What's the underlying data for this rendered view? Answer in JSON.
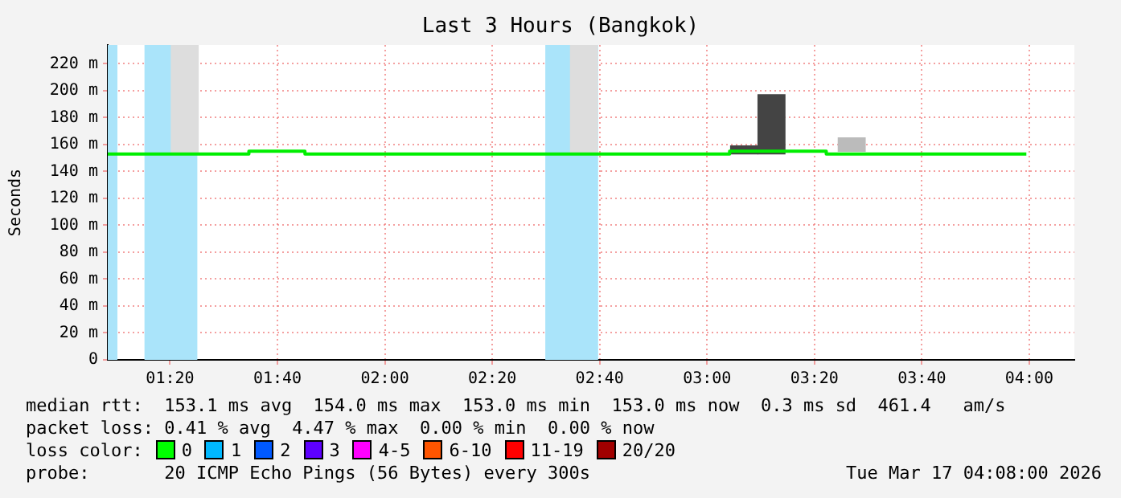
{
  "chart_data": {
    "type": "step",
    "title": "Last 3 Hours (Bangkok)",
    "ylabel": "Seconds",
    "xlim": [
      1.14,
      4.14
    ],
    "xticks": [
      {
        "value": 1.3333,
        "label": "01:20"
      },
      {
        "value": 1.6667,
        "label": "01:40"
      },
      {
        "value": 2,
        "label": "02:00"
      },
      {
        "value": 2.3333,
        "label": "02:20"
      },
      {
        "value": 2.6667,
        "label": "02:40"
      },
      {
        "value": 3,
        "label": "03:00"
      },
      {
        "value": 3.3333,
        "label": "03:20"
      },
      {
        "value": 3.6667,
        "label": "03:40"
      },
      {
        "value": 4,
        "label": "04:00"
      }
    ],
    "ylim": [
      0,
      234
    ],
    "yticks": [
      0,
      {
        "value": 20,
        "label": "20 m"
      },
      {
        "value": 40,
        "label": "40 m"
      },
      {
        "value": 60,
        "label": "60 m"
      },
      {
        "value": 80,
        "label": "80 m"
      },
      {
        "value": 100,
        "label": "100 m"
      },
      {
        "value": 120,
        "label": "120 m"
      },
      {
        "value": 140,
        "label": "140 m"
      },
      {
        "value": 160,
        "label": "160 m"
      },
      {
        "value": 180,
        "label": "180 m"
      },
      {
        "value": 200,
        "label": "200 m"
      },
      {
        "value": 220,
        "label": "220 m"
      }
    ],
    "grid": true,
    "legend": false,
    "series": [
      {
        "type": "bar",
        "x": [
          1.379,
          2.618,
          3.115,
          3.2,
          3.449
        ],
        "base": [
          153,
          153,
          153,
          153,
          155
        ],
        "values": [
          81,
          81,
          6,
          44,
          10
        ],
        "colors": [
          "#dddddd",
          "#dddddd",
          "#444444",
          "#444444",
          "#bbbbbb"
        ]
      },
      {
        "color": "#00ee00",
        "x": [
          1.14,
          1.578,
          1.752,
          3.07,
          3.37,
          3.991
        ],
        "values": [
          153,
          155,
          153,
          155,
          153,
          153
        ]
      }
    ],
    "bands": [
      {
        "axis": "x",
        "from": 1.14,
        "to": 1.17,
        "color": "#aae4fa"
      },
      {
        "axis": "x",
        "from": 1.254,
        "to": 1.418,
        "color": "#aae4fa"
      },
      {
        "axis": "x",
        "from": 2.498,
        "to": 2.662,
        "color": "#aae4fa"
      }
    ],
    "annotations": [
      "median rtt:  153.1 ms avg  154.0 ms max  153.0 ms min  153.0 ms now  0.3 ms sd  461.4   am/s",
      "packet loss: 0.41 % avg  4.47 % max  0.00 % min  0.00 % now",
      "loss color:",
      "0",
      "1",
      "2",
      "3",
      "4-5",
      "6-10",
      "11-19",
      "20/20",
      "probe:       20 ICMP Echo Pings (56 Bytes) every 300s",
      "Tue Mar 17 04:08:00 2026"
    ]
  }
}
